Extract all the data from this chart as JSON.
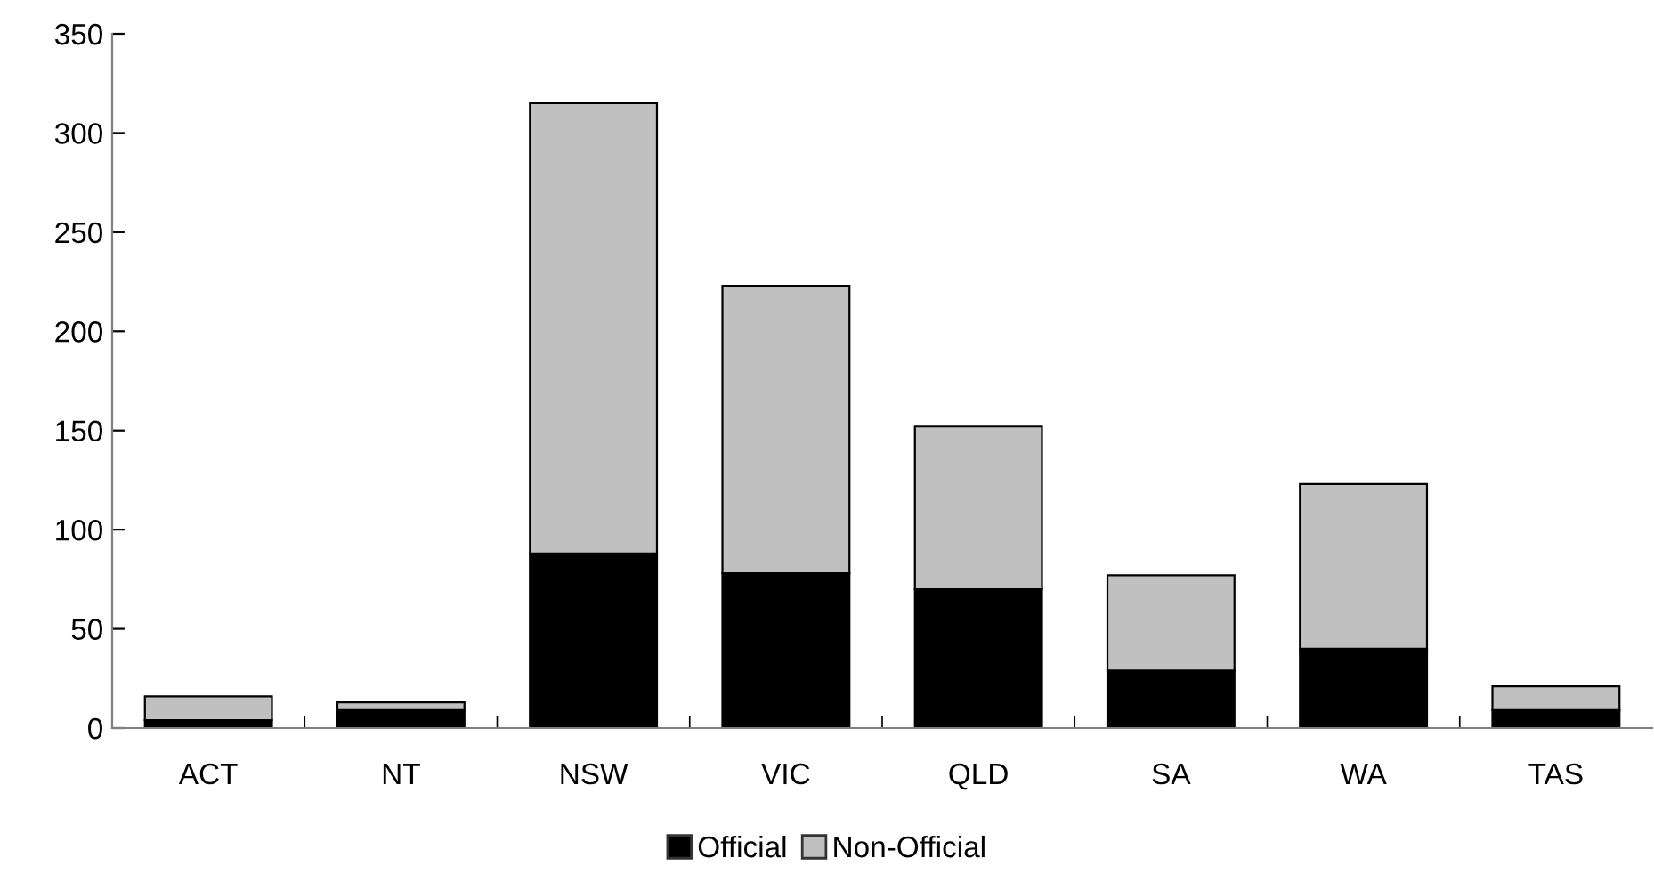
{
  "chart_data": {
    "type": "bar",
    "stacked": true,
    "categories": [
      "ACT",
      "NT",
      "NSW",
      "VIC",
      "QLD",
      "SA",
      "WA",
      "TAS"
    ],
    "series": [
      {
        "name": "Official",
        "color": "#000000",
        "values": [
          4,
          9,
          88,
          78,
          70,
          29,
          40,
          9
        ]
      },
      {
        "name": "Non-Official",
        "color": "#c0c0c0",
        "values": [
          12,
          4,
          227,
          145,
          82,
          48,
          83,
          12
        ]
      }
    ],
    "ylim": [
      0,
      350
    ],
    "yticks": [
      0,
      50,
      100,
      150,
      200,
      250,
      300,
      350
    ],
    "grid": false,
    "legend": "bottom"
  }
}
